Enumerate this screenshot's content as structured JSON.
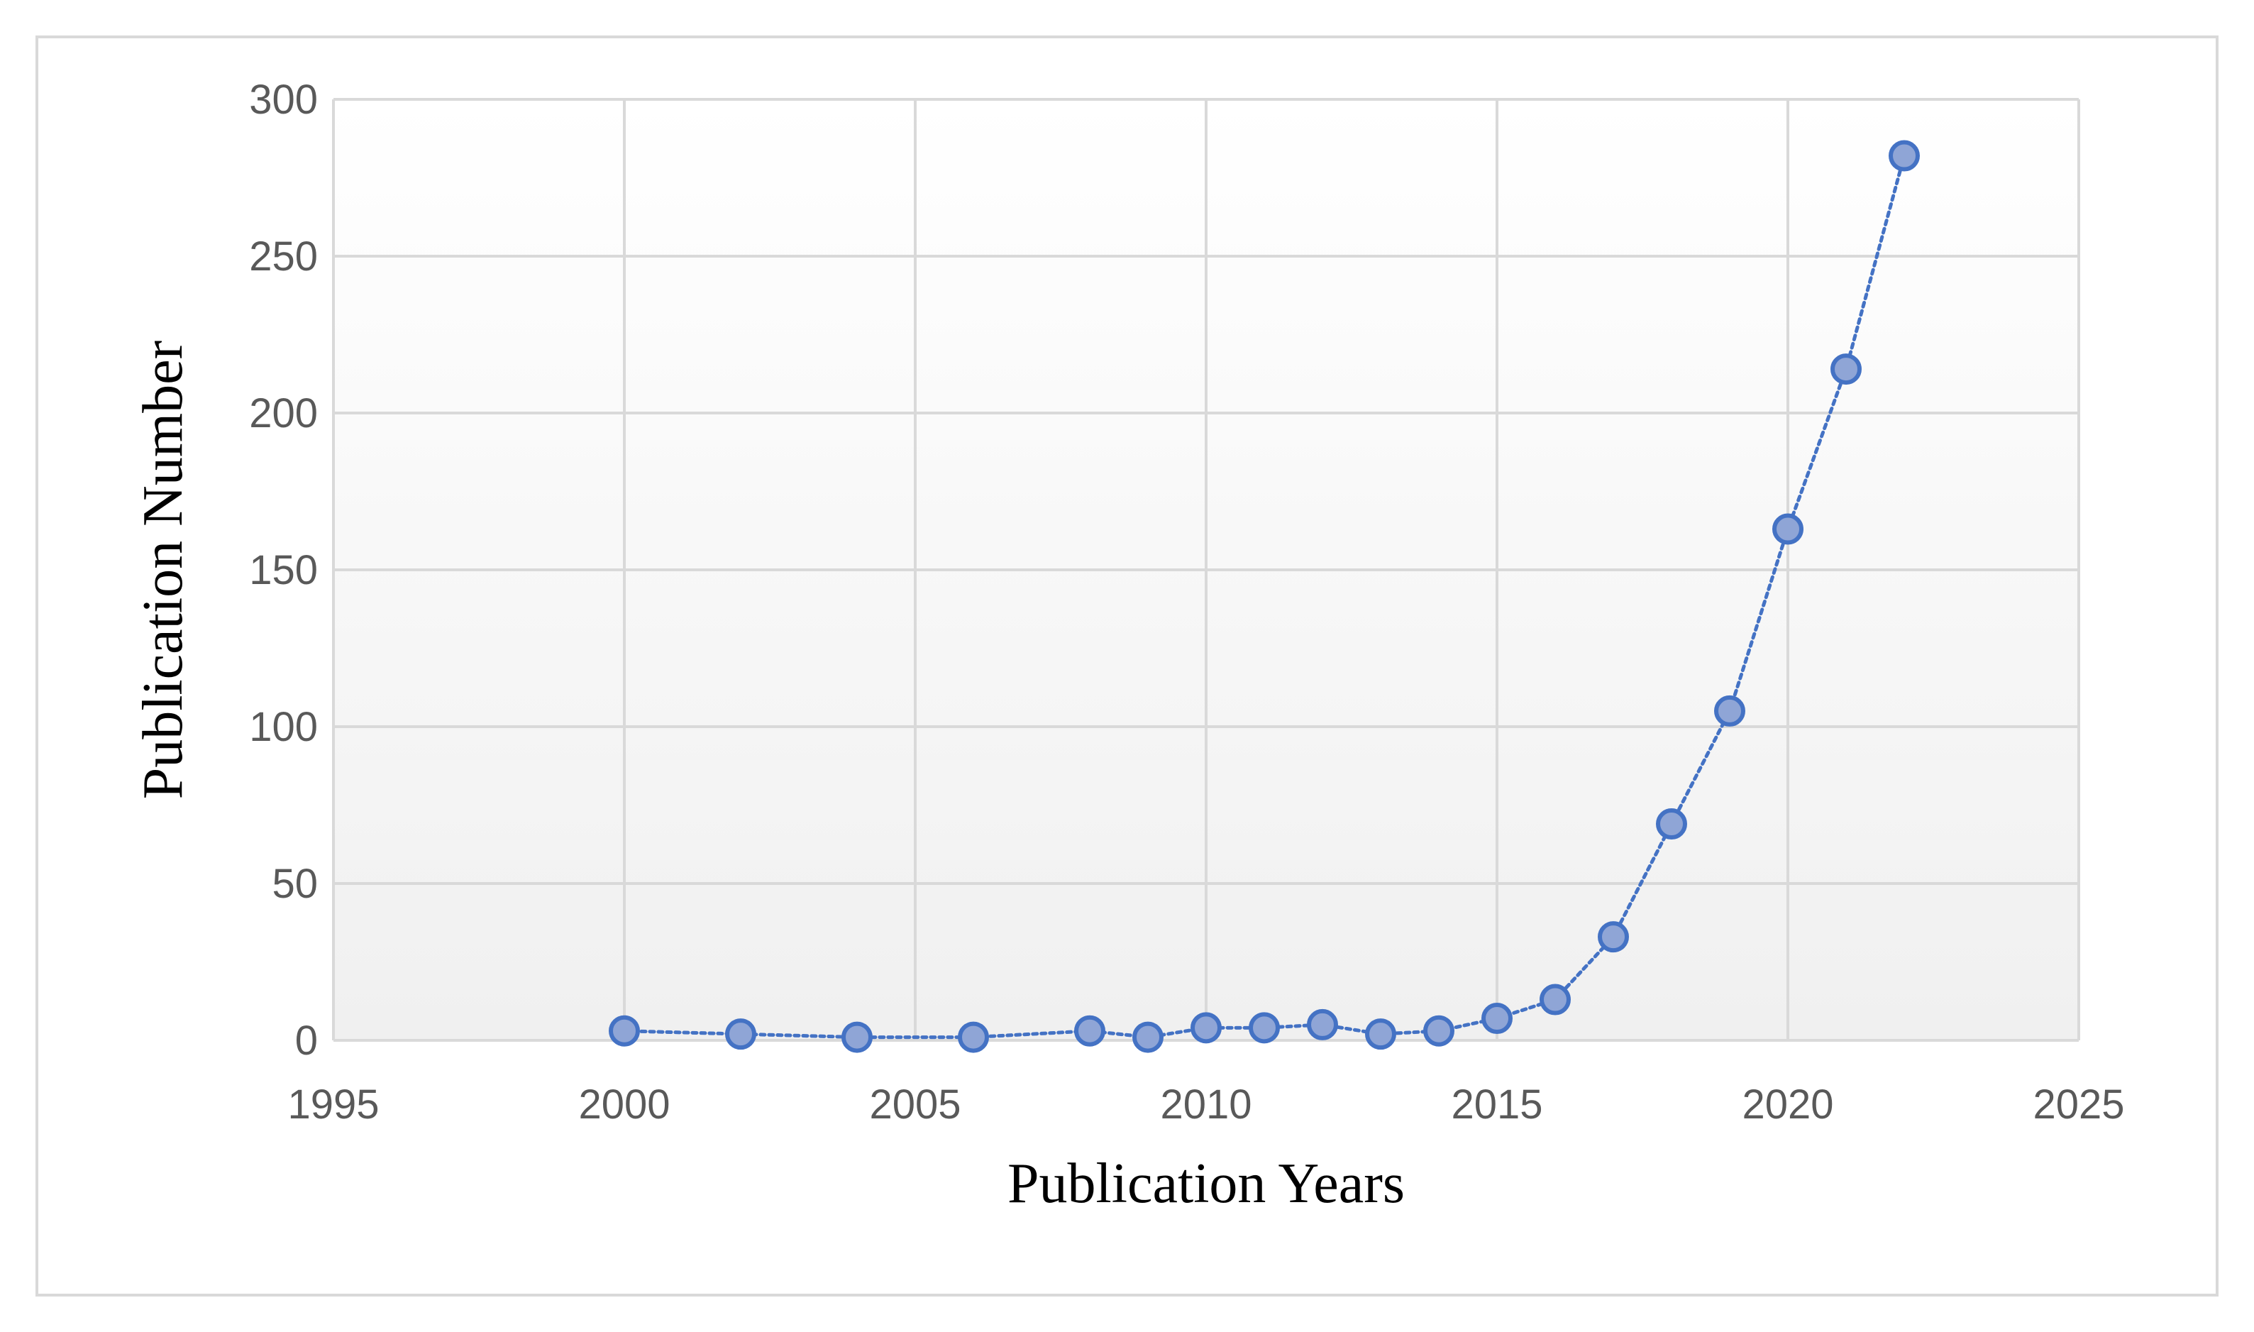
{
  "chart_data": {
    "type": "scatter",
    "title": "",
    "xlabel": "Publication Years",
    "ylabel": "Publication Number",
    "xlim": [
      1995,
      2025
    ],
    "ylim": [
      0,
      300
    ],
    "x_ticks": [
      "1995",
      "2000",
      "2005",
      "2010",
      "2015",
      "2020",
      "2025"
    ],
    "y_ticks": [
      "0",
      "50",
      "100",
      "150",
      "200",
      "250",
      "300"
    ],
    "grid": true,
    "legend": "none",
    "series": [
      {
        "line_style": "dotted",
        "points": [
          {
            "x": 2000,
            "y": 3
          },
          {
            "x": 2002,
            "y": 2
          },
          {
            "x": 2004,
            "y": 1
          },
          {
            "x": 2006,
            "y": 1
          },
          {
            "x": 2008,
            "y": 3
          },
          {
            "x": 2009,
            "y": 1
          },
          {
            "x": 2010,
            "y": 4
          },
          {
            "x": 2011,
            "y": 4
          },
          {
            "x": 2012,
            "y": 5
          },
          {
            "x": 2013,
            "y": 2
          },
          {
            "x": 2014,
            "y": 3
          },
          {
            "x": 2015,
            "y": 7
          },
          {
            "x": 2016,
            "y": 13
          },
          {
            "x": 2017,
            "y": 33
          },
          {
            "x": 2018,
            "y": 69
          },
          {
            "x": 2019,
            "y": 105
          },
          {
            "x": 2020,
            "y": 163
          },
          {
            "x": 2021,
            "y": 214
          },
          {
            "x": 2022,
            "y": 282
          }
        ]
      }
    ],
    "colors": {
      "marker_fill": "#8fa5d6",
      "marker_stroke": "#4472c4",
      "line": "#4472c4",
      "grid": "#d9d9d9",
      "plot_bg_top": "#ffffff",
      "plot_bg_bottom": "#f0f0f0"
    }
  }
}
